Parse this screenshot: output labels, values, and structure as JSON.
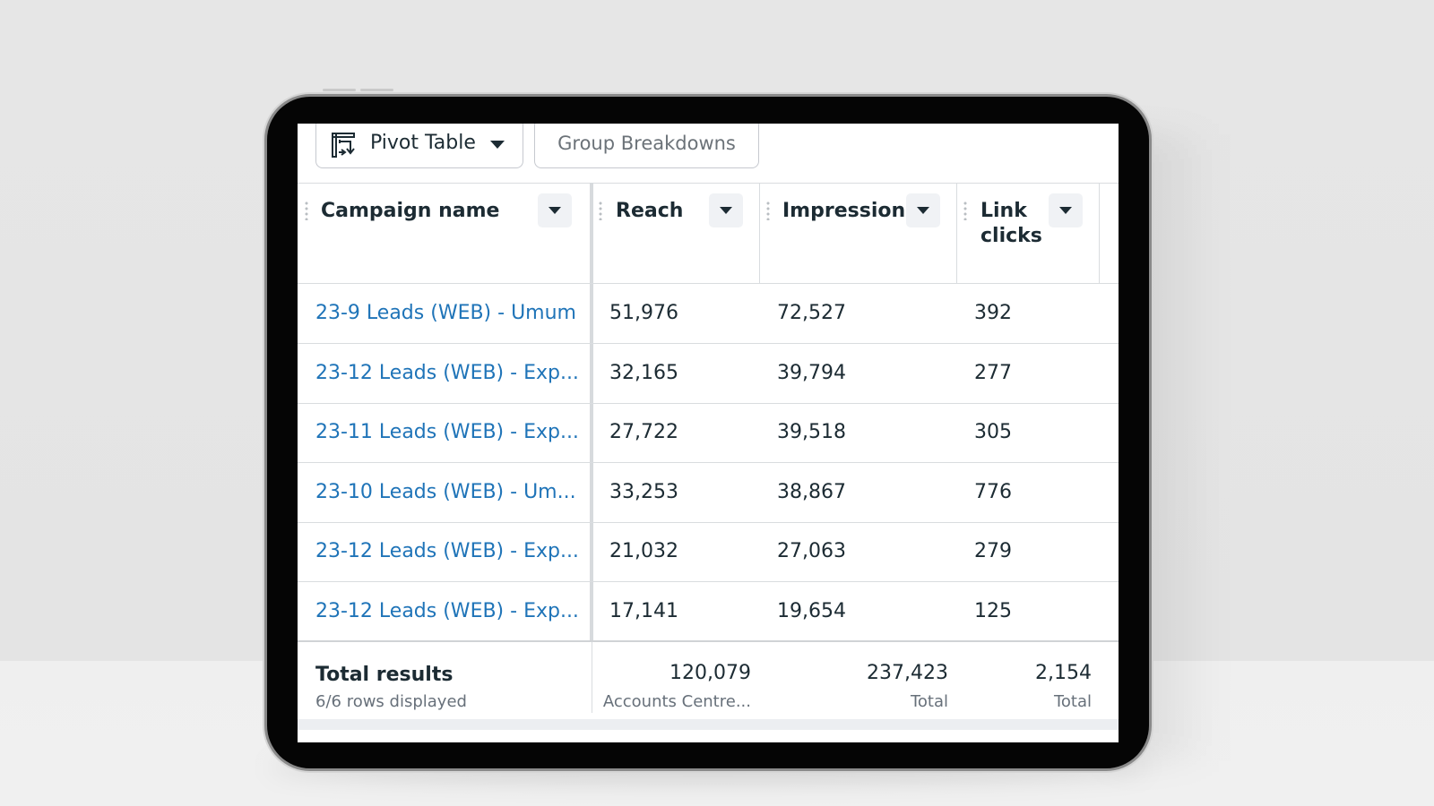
{
  "toolbar": {
    "pivot_label": "Pivot Table",
    "group_label": "Group Breakdowns"
  },
  "columns": [
    {
      "label": "Campaign name"
    },
    {
      "label": "Reach"
    },
    {
      "label": "Impressions"
    },
    {
      "label": "Link clicks",
      "line1": "Link",
      "line2": "clicks"
    }
  ],
  "rows": [
    {
      "campaign": "23-9 Leads (WEB) - Umum",
      "reach": "51,976",
      "impressions": "72,527",
      "clicks": "392"
    },
    {
      "campaign": "23-12 Leads (WEB) - Exp...",
      "reach": "32,165",
      "impressions": "39,794",
      "clicks": "277"
    },
    {
      "campaign": "23-11 Leads (WEB) - Exp...",
      "reach": "27,722",
      "impressions": "39,518",
      "clicks": "305"
    },
    {
      "campaign": "23-10 Leads (WEB) - Um...",
      "reach": "33,253",
      "impressions": "38,867",
      "clicks": "776"
    },
    {
      "campaign": "23-12 Leads (WEB) - Exp...",
      "reach": "21,032",
      "impressions": "27,063",
      "clicks": "279"
    },
    {
      "campaign": "23-12 Leads (WEB) - Exp...",
      "reach": "17,141",
      "impressions": "19,654",
      "clicks": "125"
    }
  ],
  "totals": {
    "title": "Total results",
    "subtitle": "6/6 rows displayed",
    "reach": "120,079",
    "reach_note": "Accounts Centre...",
    "impressions": "237,423",
    "impressions_note": "Total",
    "clicks": "2,154",
    "clicks_note": "Total"
  },
  "colors": {
    "link": "#1f74b8",
    "text": "#1c2b33",
    "muted": "#67707a"
  }
}
